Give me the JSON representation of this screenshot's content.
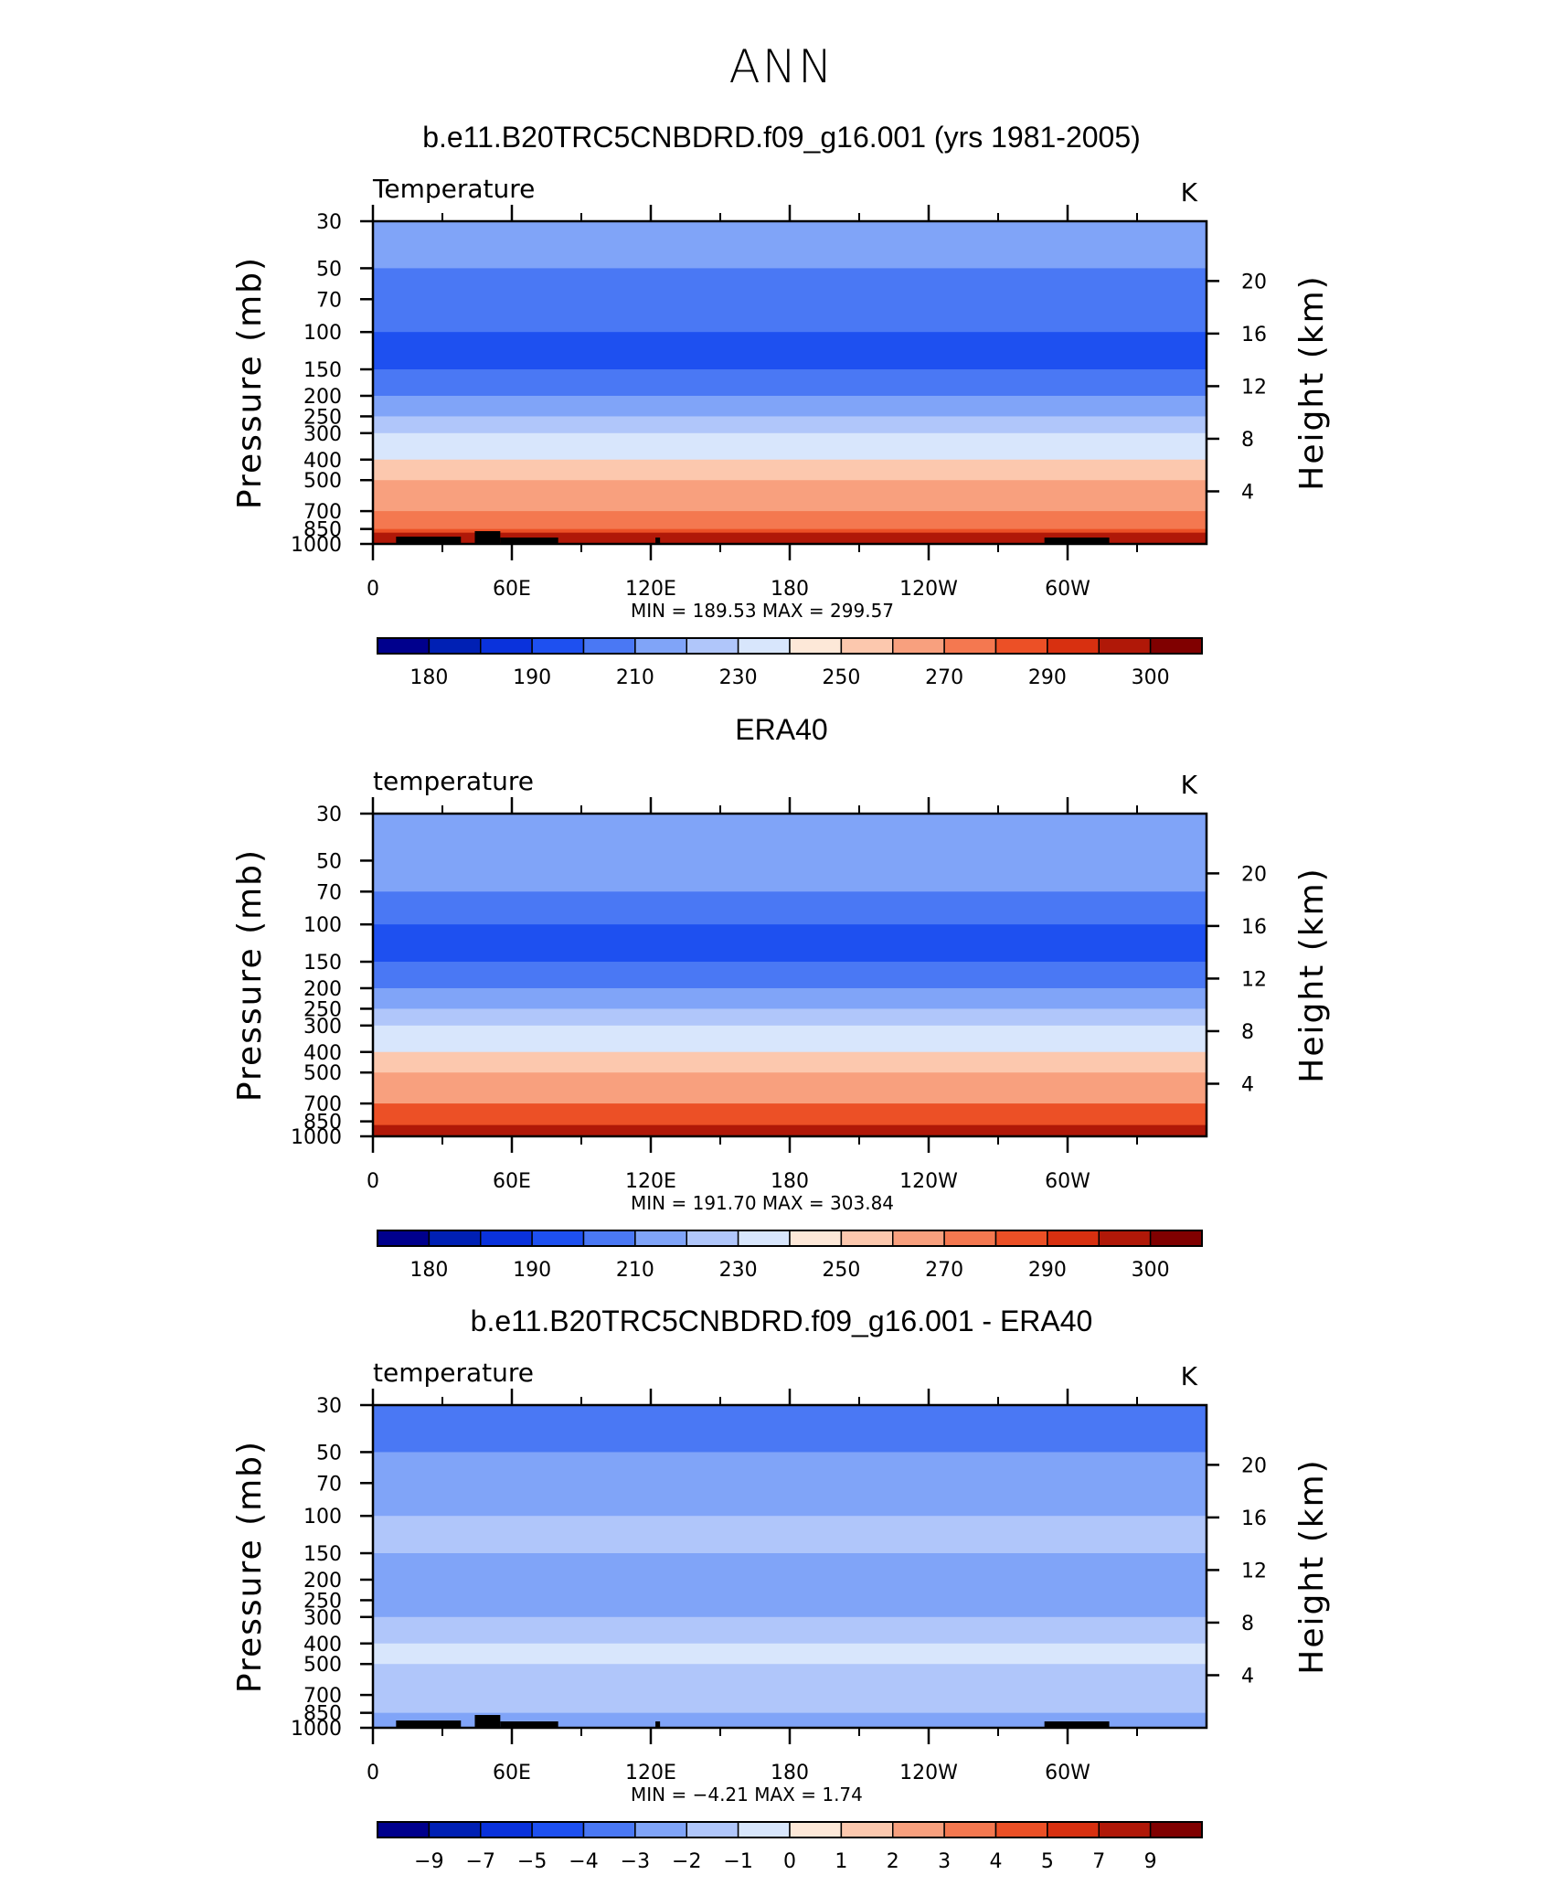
{
  "title": "ANN",
  "colors": {
    "temperature_scale": [
      "#00008d",
      "#0020b4",
      "#0a32dc",
      "#1e50f0",
      "#4a78f4",
      "#80a4f8",
      "#b0c6fa",
      "#d8e6fc",
      "#fde8d8",
      "#fcc8ae",
      "#f8a07e",
      "#f47850",
      "#ec5026",
      "#d83010",
      "#b01808",
      "#800000"
    ],
    "land_mask": "#000000"
  },
  "chart_data": [
    {
      "type": "heatmap",
      "title": "b.e11.B20TRC5CNBDRD.f09_g16.001 (yrs 1981-2005)",
      "left_label": "Temperature",
      "units": "K",
      "xlabel": "",
      "ylabel": "Pressure  (mb)",
      "y2label": "Height  (km)",
      "x_ticks": [
        "0",
        "60E",
        "120E",
        "180",
        "120W",
        "60W"
      ],
      "y_ticks": [
        "30",
        "50",
        "70",
        "100",
        "150",
        "200",
        "250",
        "300",
        "400",
        "500",
        "700",
        "850",
        "1000"
      ],
      "y2_ticks": [
        "20",
        "16",
        "12",
        "8",
        "4"
      ],
      "stats": "MIN =  189.53   MAX =  299.57",
      "colorbar_labels": [
        "180",
        "190",
        "210",
        "230",
        "250",
        "270",
        "290",
        "300"
      ],
      "levels": [
        175,
        180,
        185,
        190,
        200,
        210,
        220,
        230,
        240,
        250,
        260,
        270,
        280,
        290,
        295,
        300
      ],
      "profile": [
        {
          "p": 30,
          "v": 215
        },
        {
          "p": 50,
          "v": 208
        },
        {
          "p": 70,
          "v": 200
        },
        {
          "p": 100,
          "v": 195
        },
        {
          "p": 150,
          "v": 205
        },
        {
          "p": 200,
          "v": 215
        },
        {
          "p": 250,
          "v": 225
        },
        {
          "p": 300,
          "v": 235
        },
        {
          "p": 400,
          "v": 250
        },
        {
          "p": 500,
          "v": 262
        },
        {
          "p": 700,
          "v": 279
        },
        {
          "p": 850,
          "v": 287
        },
        {
          "p": 1000,
          "v": 295
        }
      ]
    },
    {
      "type": "heatmap",
      "title": "ERA40",
      "left_label": "temperature",
      "units": "K",
      "xlabel": "",
      "ylabel": "Pressure  (mb)",
      "y2label": "Height  (km)",
      "x_ticks": [
        "0",
        "60E",
        "120E",
        "180",
        "120W",
        "60W"
      ],
      "y_ticks": [
        "30",
        "50",
        "70",
        "100",
        "150",
        "200",
        "250",
        "300",
        "400",
        "500",
        "700",
        "850",
        "1000"
      ],
      "y2_ticks": [
        "20",
        "16",
        "12",
        "8",
        "4"
      ],
      "stats": "MIN =  191.70   MAX =  303.84",
      "colorbar_labels": [
        "180",
        "190",
        "210",
        "230",
        "250",
        "270",
        "290",
        "300"
      ],
      "levels": [
        175,
        180,
        185,
        190,
        200,
        210,
        220,
        230,
        240,
        250,
        260,
        270,
        280,
        290,
        295,
        300
      ],
      "profile": [
        {
          "p": 30,
          "v": 218
        },
        {
          "p": 50,
          "v": 210
        },
        {
          "p": 70,
          "v": 201
        },
        {
          "p": 100,
          "v": 196
        },
        {
          "p": 150,
          "v": 206
        },
        {
          "p": 200,
          "v": 216
        },
        {
          "p": 250,
          "v": 226
        },
        {
          "p": 300,
          "v": 236
        },
        {
          "p": 400,
          "v": 251
        },
        {
          "p": 500,
          "v": 263
        },
        {
          "p": 700,
          "v": 280
        },
        {
          "p": 850,
          "v": 289
        },
        {
          "p": 1000,
          "v": 297
        }
      ]
    },
    {
      "type": "heatmap",
      "title": "b.e11.B20TRC5CNBDRD.f09_g16.001 - ERA40",
      "left_label": "temperature",
      "units": "K",
      "xlabel": "",
      "ylabel": "Pressure  (mb)",
      "y2label": "Height  (km)",
      "x_ticks": [
        "0",
        "60E",
        "120E",
        "180",
        "120W",
        "60W"
      ],
      "y_ticks": [
        "30",
        "50",
        "70",
        "100",
        "150",
        "200",
        "250",
        "300",
        "400",
        "500",
        "700",
        "850",
        "1000"
      ],
      "y2_ticks": [
        "20",
        "16",
        "12",
        "8",
        "4"
      ],
      "stats": "MIN =    −4.21   MAX =      1.74",
      "colorbar_labels": [
        "−9",
        "−7",
        "−5",
        "−4",
        "−3",
        "−2",
        "−1",
        "0",
        "1",
        "2",
        "3",
        "4",
        "5",
        "7",
        "9"
      ],
      "levels": [
        -10,
        -9,
        -7,
        -5,
        -4,
        -3,
        -2,
        -1,
        0,
        1,
        2,
        3,
        4,
        5,
        7,
        9
      ],
      "profile": [
        {
          "p": 30,
          "v": -3.5
        },
        {
          "p": 50,
          "v": -2.5
        },
        {
          "p": 70,
          "v": -2.5
        },
        {
          "p": 100,
          "v": -1.5
        },
        {
          "p": 150,
          "v": -2.5
        },
        {
          "p": 200,
          "v": -2.5
        },
        {
          "p": 250,
          "v": -2.5
        },
        {
          "p": 300,
          "v": -1.5
        },
        {
          "p": 400,
          "v": -0.5
        },
        {
          "p": 500,
          "v": -1.5
        },
        {
          "p": 700,
          "v": -1.5
        },
        {
          "p": 850,
          "v": -2.5
        },
        {
          "p": 1000,
          "v": -2.5
        }
      ]
    }
  ]
}
